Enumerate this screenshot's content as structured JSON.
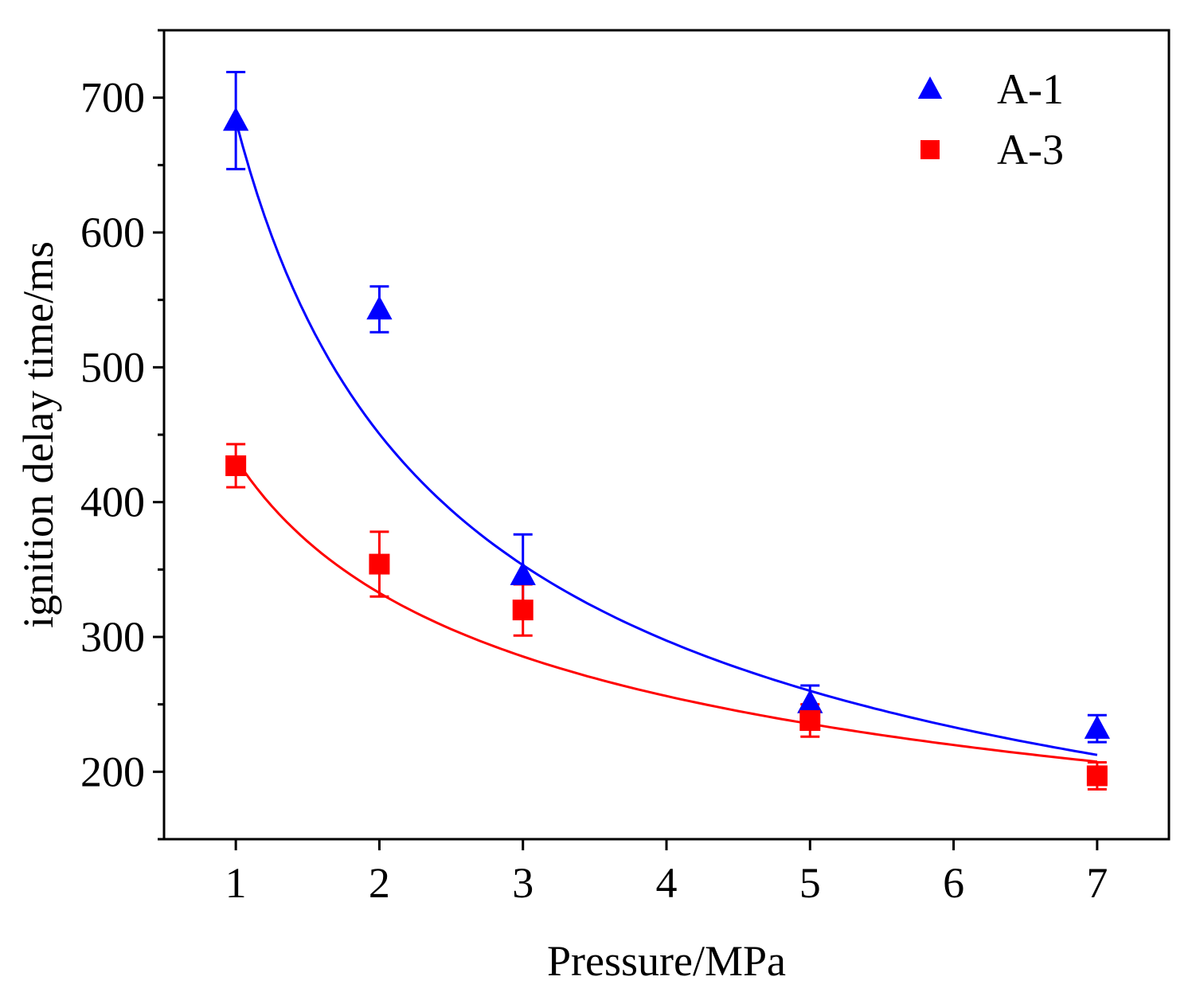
{
  "chart_data": {
    "type": "scatter",
    "title": "",
    "xlabel": "Pressure/MPa",
    "ylabel": "ignition delay time/ms",
    "xlim": [
      0.5,
      7.5
    ],
    "ylim": [
      150,
      750
    ],
    "xticks": [
      1,
      2,
      3,
      4,
      5,
      6,
      7
    ],
    "xtick_labels": [
      "1",
      "2",
      "3",
      "4",
      "5",
      "6",
      "7"
    ],
    "yticks": [
      200,
      300,
      400,
      500,
      600,
      700
    ],
    "ytick_labels": [
      "200",
      "300",
      "400",
      "500",
      "600",
      "700"
    ],
    "legend_position": "top-right",
    "series": [
      {
        "name": "A-1",
        "marker": "triangle",
        "color": "#0000ff",
        "x": [
          1,
          2,
          3,
          5,
          7
        ],
        "y": [
          683,
          543,
          346,
          251,
          232
        ],
        "error": [
          36,
          17,
          30,
          13,
          10
        ],
        "fit": {
          "type": "power",
          "a": 683,
          "b": -0.6,
          "x_range": [
            1,
            7
          ]
        }
      },
      {
        "name": "A-3",
        "marker": "square",
        "color": "#ff0000",
        "x": [
          1,
          2,
          3,
          5,
          7
        ],
        "y": [
          427,
          354,
          320,
          238,
          197
        ],
        "error": [
          16,
          24,
          19,
          12,
          10
        ],
        "fit": {
          "type": "power",
          "a": 432,
          "b": -0.377,
          "x_range": [
            1,
            7
          ]
        }
      }
    ]
  }
}
